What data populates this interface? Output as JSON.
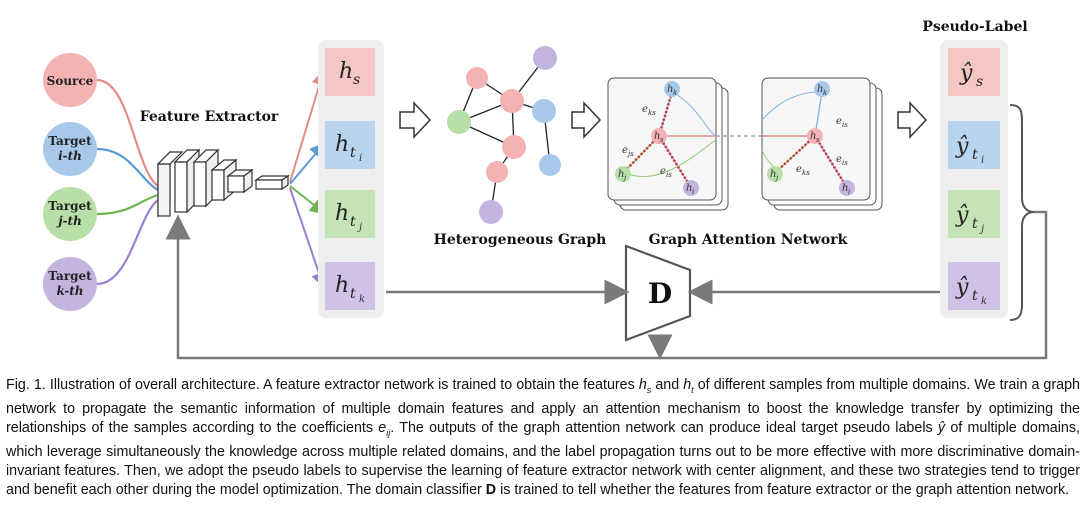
{
  "figure": {
    "inputs": [
      {
        "name": "source",
        "line1": "Source",
        "line2": "",
        "fill": "#f4b3b3",
        "edge": "#e58a8a"
      },
      {
        "name": "target-i",
        "line1": "Target",
        "line2": "i-th",
        "fill": "#a8c8ea",
        "edge": "#5b9bd5"
      },
      {
        "name": "target-j",
        "line1": "Target",
        "line2": "j-th",
        "fill": "#b8dfa8",
        "edge": "#6fb54f"
      },
      {
        "name": "target-k",
        "line1": "Target",
        "line2": "k-th",
        "fill": "#c5b4e0",
        "edge": "#9a7fcf"
      }
    ],
    "feature_extractor_label": "Feature Extractor",
    "features": [
      {
        "name": "h-s",
        "base": "h",
        "sub": "s",
        "subsub": "",
        "fill": "#f4c6c6"
      },
      {
        "name": "h-ti",
        "base": "h",
        "sub": "t",
        "subsub": "i",
        "fill": "#b9d4ef"
      },
      {
        "name": "h-tj",
        "base": "h",
        "sub": "t",
        "subsub": "j",
        "fill": "#c4e3b6"
      },
      {
        "name": "h-tk",
        "base": "h",
        "sub": "t",
        "subsub": "k",
        "fill": "#cfc2e6"
      }
    ],
    "heterogeneous_graph_label": "Heterogeneous Graph",
    "gat_label": "Graph Attention Network",
    "gat_nodes": {
      "k": "h",
      "k_sub": "k",
      "s": "h",
      "s_sub": "s",
      "j": "h",
      "j_sub": "j",
      "i": "h",
      "i_sub": "i"
    },
    "gat_edges": {
      "eks": "e",
      "eks_sub": "ks",
      "ejs": "e",
      "ejs_sub": "js",
      "eis": "e",
      "eis_sub": "is"
    },
    "pseudo_label_title": "Pseudo-Label",
    "pseudo_labels": [
      {
        "name": "y-s",
        "base": "ŷ",
        "sub": "s",
        "subsub": "",
        "fill": "#f4c6c6"
      },
      {
        "name": "y-ti",
        "base": "ŷ",
        "sub": "t",
        "subsub": "i",
        "fill": "#b9d4ef"
      },
      {
        "name": "y-tj",
        "base": "ŷ",
        "sub": "t",
        "subsub": "j",
        "fill": "#c4e3b6"
      },
      {
        "name": "y-tk",
        "base": "ŷ",
        "sub": "t",
        "subsub": "k",
        "fill": "#cfc2e6"
      }
    ],
    "discriminator_label": "D"
  },
  "caption": {
    "fig_label": "Fig. 1.",
    "s1a": "Illustration of overall architecture. A feature extractor network is trained to obtain the features",
    "hs": "h",
    "hs_sub": "s",
    "and": "and",
    "ht": "h",
    "ht_sub": "t",
    "s1b": "of different samples from multiple domains. We train a graph network to propagate the semantic information of multiple domain features and apply an attention mechanism to boost the knowledge transfer by optimizing the relationships of the samples according to the coefficients",
    "eij": "e",
    "eij_sub": "ij",
    "s2a": ". The outputs of the graph attention network can produce ideal target pseudo labels",
    "yhat": "ŷ",
    "s2b": "of multiple domains, which leverage simultaneously the knowledge across multiple related domains, and the label propagation turns out to be more effective with more discriminative domain-invariant features. Then, we adopt the pseudo labels to supervise the learning of feature extractor network with center alignment, and these two strategies tend to trigger and benefit each other during the model optimization. The domain classifier",
    "d": "D",
    "s3": "is trained to tell whether the features from feature extractor or the graph attention network."
  }
}
